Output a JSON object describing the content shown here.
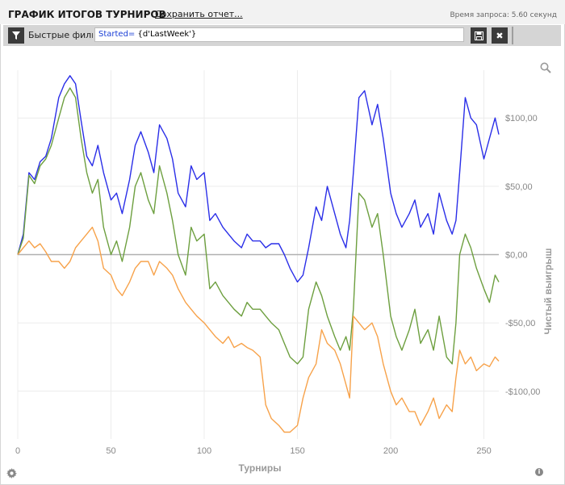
{
  "header": {
    "title": "ГРАФИК ИТОГОВ ТУРНИРОВ",
    "save_label": "Сохранить отчет...",
    "query_time": "Время запроса: 5.60 секунд"
  },
  "filter": {
    "label": "Быстрые фильт",
    "keyword": "Started=",
    "value": " {d'LastWeek'}"
  },
  "icons": {
    "filter": "filter-icon",
    "save": "floppy-disk-icon",
    "clear": "close-icon",
    "zoom": "magnifier-icon",
    "settings": "gear-icon",
    "info": "info-icon"
  },
  "colors": {
    "net_winnings": "#2a2ee8",
    "series_green": "#6d9f3f",
    "series_orange": "#f7a24a",
    "zero_line": "#b0b0b0"
  },
  "chart_data": {
    "type": "line",
    "title": "",
    "xlabel": "Турниры",
    "ylabel": "Чистый выигрыш",
    "xlim": [
      0,
      258
    ],
    "ylim": [
      -135,
      135
    ],
    "x_ticks": [
      0,
      50,
      100,
      150,
      200,
      250
    ],
    "y_ticks": [
      100,
      50,
      0,
      -50,
      -100
    ],
    "y_tick_labels": [
      "$100,00",
      "$50,00",
      "$0,00",
      "-$50,00",
      "-$100,00"
    ],
    "y_axis_side": "right",
    "grid": true,
    "legend": "none",
    "series": [
      {
        "color": "#2a2ee8",
        "x": [
          0,
          3,
          6,
          9,
          12,
          15,
          18,
          22,
          25,
          28,
          31,
          34,
          37,
          40,
          43,
          46,
          50,
          53,
          56,
          60,
          63,
          66,
          70,
          73,
          76,
          80,
          83,
          86,
          90,
          93,
          96,
          100,
          103,
          106,
          110,
          113,
          116,
          120,
          123,
          126,
          130,
          133,
          136,
          140,
          143,
          146,
          150,
          153,
          156,
          160,
          163,
          166,
          170,
          173,
          176,
          178,
          180,
          183,
          186,
          190,
          193,
          196,
          200,
          203,
          206,
          210,
          213,
          216,
          220,
          223,
          226,
          230,
          233,
          235,
          237,
          240,
          243,
          246,
          250,
          253,
          256,
          258
        ],
        "values": [
          0,
          15,
          60,
          55,
          68,
          72,
          85,
          115,
          125,
          131,
          125,
          98,
          72,
          65,
          80,
          60,
          40,
          45,
          30,
          55,
          80,
          90,
          75,
          60,
          95,
          85,
          70,
          45,
          35,
          65,
          55,
          60,
          25,
          30,
          20,
          15,
          10,
          5,
          15,
          10,
          10,
          5,
          8,
          8,
          0,
          -10,
          -20,
          -15,
          5,
          35,
          25,
          50,
          30,
          15,
          5,
          25,
          60,
          115,
          120,
          95,
          110,
          85,
          45,
          30,
          20,
          30,
          40,
          20,
          30,
          15,
          45,
          25,
          15,
          25,
          60,
          115,
          100,
          95,
          70,
          85,
          100,
          88
        ]
      },
      {
        "color": "#6d9f3f",
        "x": [
          0,
          3,
          6,
          9,
          12,
          15,
          18,
          22,
          25,
          28,
          31,
          34,
          37,
          40,
          43,
          46,
          50,
          53,
          56,
          60,
          63,
          66,
          70,
          73,
          76,
          80,
          83,
          86,
          90,
          93,
          96,
          100,
          103,
          106,
          110,
          113,
          116,
          120,
          123,
          126,
          130,
          133,
          136,
          140,
          143,
          146,
          150,
          153,
          156,
          160,
          163,
          166,
          170,
          173,
          176,
          178,
          180,
          183,
          186,
          190,
          193,
          196,
          200,
          203,
          206,
          210,
          213,
          216,
          220,
          223,
          226,
          230,
          233,
          235,
          237,
          240,
          243,
          246,
          250,
          253,
          256,
          258
        ],
        "values": [
          0,
          12,
          58,
          52,
          65,
          70,
          80,
          100,
          115,
          122,
          115,
          85,
          60,
          45,
          55,
          20,
          0,
          10,
          -5,
          20,
          50,
          60,
          40,
          30,
          65,
          45,
          25,
          0,
          -15,
          20,
          10,
          15,
          -25,
          -20,
          -30,
          -35,
          -40,
          -45,
          -35,
          -40,
          -40,
          -45,
          -50,
          -55,
          -65,
          -75,
          -80,
          -75,
          -40,
          -20,
          -30,
          -45,
          -60,
          -70,
          -60,
          -70,
          -40,
          45,
          40,
          20,
          30,
          0,
          -45,
          -60,
          -70,
          -55,
          -40,
          -65,
          -55,
          -70,
          -45,
          -75,
          -80,
          -50,
          0,
          15,
          5,
          -10,
          -25,
          -35,
          -15,
          -20
        ]
      },
      {
        "color": "#f7a24a",
        "x": [
          0,
          3,
          6,
          9,
          12,
          15,
          18,
          22,
          25,
          28,
          31,
          34,
          37,
          40,
          43,
          46,
          50,
          53,
          56,
          60,
          63,
          66,
          70,
          73,
          76,
          80,
          83,
          86,
          90,
          93,
          96,
          100,
          103,
          106,
          110,
          113,
          116,
          120,
          123,
          126,
          130,
          133,
          136,
          140,
          143,
          146,
          150,
          153,
          156,
          160,
          163,
          166,
          170,
          173,
          176,
          178,
          180,
          183,
          186,
          190,
          193,
          196,
          200,
          203,
          206,
          210,
          213,
          216,
          220,
          223,
          226,
          230,
          233,
          235,
          237,
          240,
          243,
          246,
          250,
          253,
          256,
          258
        ],
        "values": [
          0,
          5,
          10,
          5,
          8,
          2,
          -5,
          -5,
          -10,
          -5,
          5,
          10,
          15,
          20,
          10,
          -10,
          -15,
          -25,
          -30,
          -20,
          -10,
          -5,
          -5,
          -15,
          -5,
          -10,
          -15,
          -25,
          -35,
          -40,
          -45,
          -50,
          -55,
          -60,
          -65,
          -60,
          -68,
          -65,
          -68,
          -70,
          -75,
          -110,
          -120,
          -125,
          -130,
          -130,
          -125,
          -105,
          -90,
          -80,
          -55,
          -65,
          -70,
          -80,
          -95,
          -105,
          -45,
          -50,
          -55,
          -50,
          -60,
          -80,
          -100,
          -110,
          -105,
          -115,
          -115,
          -125,
          -115,
          -105,
          -120,
          -110,
          -115,
          -90,
          -70,
          -80,
          -75,
          -85,
          -80,
          -82,
          -75,
          -78
        ]
      }
    ]
  }
}
